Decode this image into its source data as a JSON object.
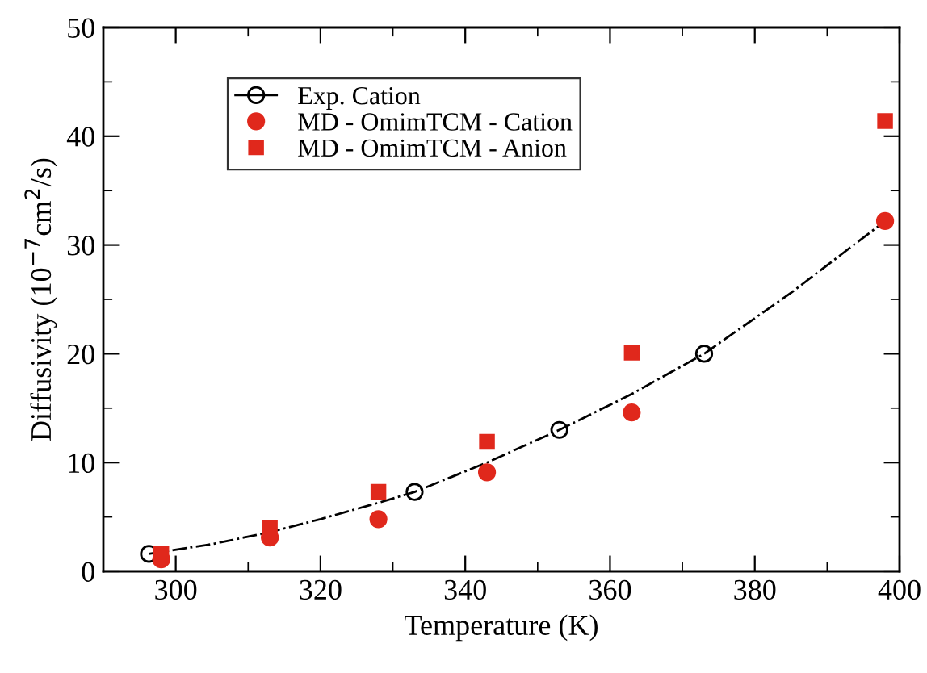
{
  "chart_data": {
    "type": "scatter",
    "xlabel": "Temperature (K)",
    "ylabel": "Diffusivity (10$^{−7}$cm$^{2}$/s)",
    "xlim": [
      290,
      400
    ],
    "ylim": [
      0,
      50
    ],
    "xticks": [
      {
        "value": 290,
        "label": null
      },
      300,
      {
        "value": 310,
        "label": null
      },
      320,
      {
        "value": 330,
        "label": null
      },
      340,
      {
        "value": 350,
        "label": null
      },
      360,
      {
        "value": 370,
        "label": null
      },
      380,
      {
        "value": 390,
        "label": null
      },
      400
    ],
    "yticks": [
      0,
      {
        "value": 5,
        "label": null
      },
      10,
      {
        "value": 15,
        "label": null
      },
      20,
      {
        "value": 25,
        "label": null
      },
      30,
      {
        "value": 35,
        "label": null
      },
      40,
      {
        "value": 45,
        "label": null
      },
      50
    ],
    "grid": false,
    "legend": "top left",
    "series": [
      {
        "type": "line",
        "color": "#000000",
        "line_style": "dashdot",
        "marker": "none",
        "x": [
          296.3,
          305,
          313,
          320,
          328,
          333,
          343,
          353,
          363,
          373,
          385,
          398
        ],
        "values": [
          1.6,
          2.5,
          3.6,
          4.8,
          6.3,
          7.3,
          10.0,
          13.0,
          16.3,
          20.0,
          25.6,
          32.2
        ]
      },
      {
        "name": "Exp. Cation",
        "color": "#000000",
        "marker": "open circle",
        "x": [
          296.3,
          333,
          353,
          373
        ],
        "values": [
          1.6,
          7.3,
          13.0,
          20.0
        ]
      },
      {
        "name": "MD - OmimTCM - Cation",
        "color": "#e0281c",
        "marker": "circle",
        "x": [
          298,
          313,
          328,
          343,
          363,
          398
        ],
        "values": [
          1.1,
          3.1,
          4.8,
          9.1,
          14.6,
          32.2
        ]
      },
      {
        "name": "MD - OmimTCM - Anion",
        "color": "#e0281c",
        "marker": "square",
        "x": [
          298,
          313,
          328,
          343,
          363,
          398
        ],
        "values": [
          1.6,
          4.0,
          7.3,
          11.9,
          20.1,
          41.4
        ]
      }
    ]
  }
}
